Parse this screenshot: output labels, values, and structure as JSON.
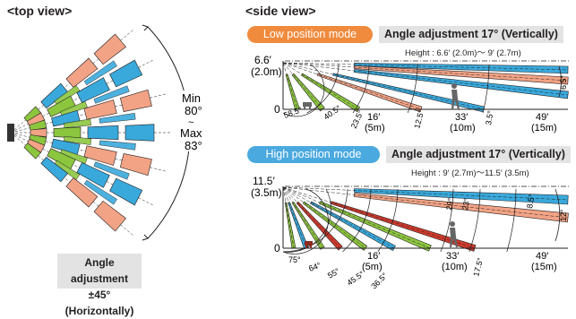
{
  "top_view": {
    "title": "<top view>",
    "min_label": "Min",
    "min_value": "80°",
    "tilde": "~",
    "max_label": "Max",
    "max_value": "83°",
    "h_adjust_line1": "Angle adjustment",
    "h_adjust_line2": "±45° (Horizontally)"
  },
  "side_view": {
    "title": "<side view>",
    "low": {
      "mode_label": "Low position mode",
      "angle_label": "Angle adjustment 17° (Vertically)",
      "height_note": "Height : 6.6′ (2.0m)～ 9′ (2.7m)",
      "mount_height_ft": "6.6′",
      "mount_height_m": "(2.0m)",
      "origin": "0",
      "beam_angles": [
        "58.5°",
        "40.5°",
        "23.5°",
        "12.5°",
        "3.5°"
      ],
      "distance_labels": [
        {
          "ft": "16′",
          "m": "(5m)"
        },
        {
          "ft": "33′",
          "m": "(10m)"
        },
        {
          "ft": "49′",
          "m": "(15m)"
        }
      ],
      "spread_angle": "6.5°"
    },
    "high": {
      "mode_label": "High position mode",
      "angle_label": "Angle adjustment 17° (Vertically)",
      "height_note": "Height : 9′ (2.7m)～11.5′ (3.5m)",
      "mount_height_ft": "11.5′",
      "mount_height_m": "(3.5m)",
      "origin": "0",
      "beam_angles": [
        "75°",
        "64°",
        "55°",
        "45.5°",
        "36.5°",
        "29°",
        "23°",
        "17.5°",
        "8.5°"
      ],
      "distance_labels": [
        {
          "ft": "16′",
          "m": "(5m)"
        },
        {
          "ft": "33′",
          "m": "(10m)"
        },
        {
          "ft": "49′",
          "m": "(15m)"
        }
      ],
      "spread_angle": "12°"
    }
  },
  "colors": {
    "salmon": "#f2a385",
    "blue": "#39a9dc",
    "green": "#8cc63f",
    "red": "#cf3a2c",
    "mode_low": "#f08a3c",
    "mode_high": "#4aa9df",
    "box_gray": "#e3e3e3"
  }
}
